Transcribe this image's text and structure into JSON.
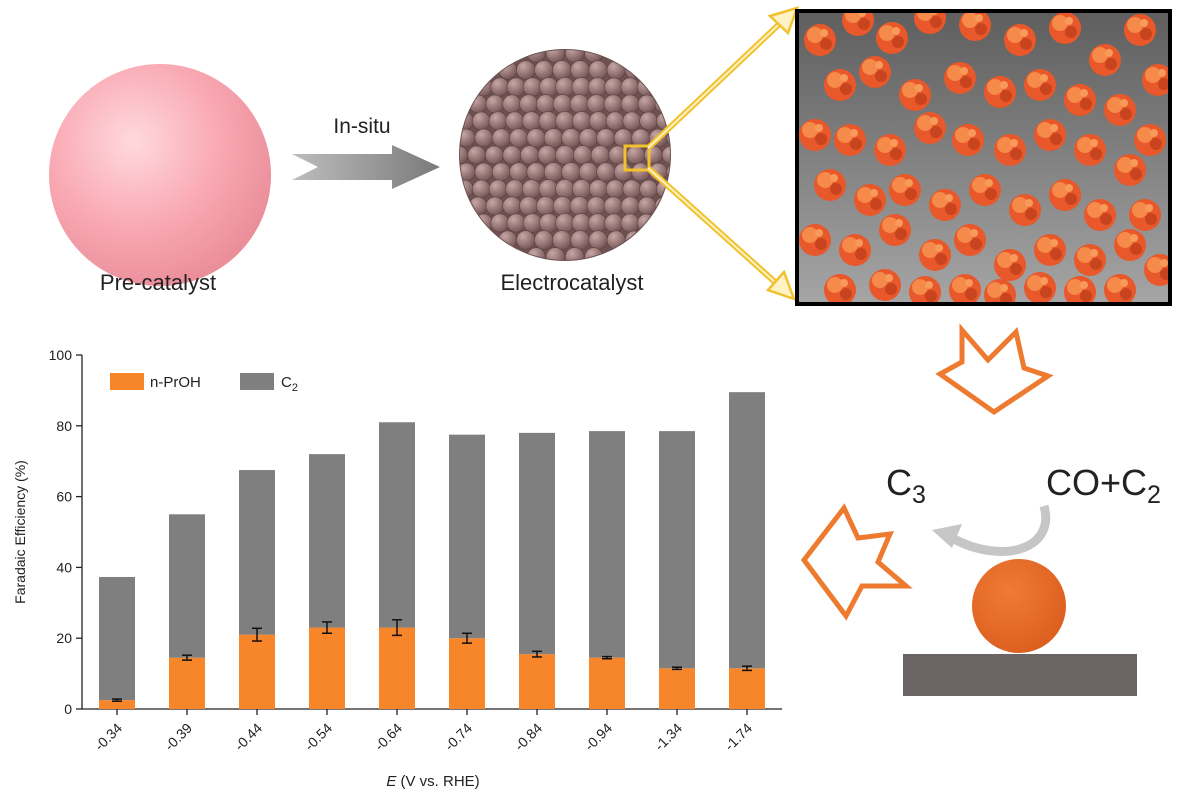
{
  "scheme": {
    "pre_catalyst_label": "Pre-catalyst",
    "arrow_label": "In-situ",
    "electrocatalyst_label": "Electrocatalyst",
    "product_label": "C",
    "product_subscript": "3",
    "reactant_label": "CO+C",
    "reactant_subscript": "2"
  },
  "colors": {
    "accent": "#F7852A",
    "secondary": "#7F7F7F",
    "sphere": "#F9A9B3",
    "particle": "#E8582A",
    "highlight": "#F2C12E"
  },
  "chart_data": {
    "type": "bar",
    "stacked": true,
    "categories": [
      "-0.34",
      "-0.39",
      "-0.44",
      "-0.54",
      "-0.64",
      "-0.74",
      "-0.84",
      "-0.94",
      "-1.34",
      "-1.74"
    ],
    "series": [
      {
        "name": "n-PrOH",
        "color": "#F7852A",
        "values": [
          2.5,
          14.5,
          21,
          23,
          23,
          20,
          15.5,
          14.5,
          11.5,
          11.5
        ],
        "errors": [
          0.3,
          0.7,
          1.8,
          1.6,
          2.2,
          1.4,
          0.8,
          0.3,
          0.3,
          0.6
        ]
      },
      {
        "name": "C",
        "name_subscript": "2",
        "color": "#7F7F7F",
        "values": [
          34.8,
          40.5,
          46.5,
          49,
          58,
          57.5,
          62.5,
          64,
          67,
          78
        ]
      }
    ],
    "ylabel": "Faradaic Efficiency (%)",
    "xlabel_italic": "E",
    "xlabel_rest": " (V vs. RHE)",
    "ylim": [
      0,
      100
    ],
    "yticks": [
      0,
      20,
      40,
      60,
      80,
      100
    ],
    "legend_position": "top-left",
    "grid": false
  }
}
